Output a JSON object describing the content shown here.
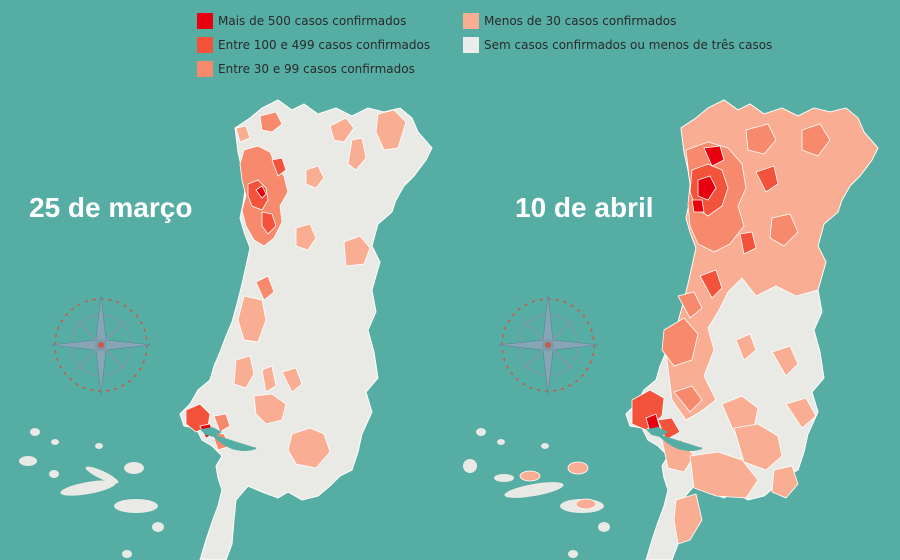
{
  "legend": {
    "items": [
      {
        "label": "Mais de 500 casos confirmados",
        "color": "#e8000e"
      },
      {
        "label": "Entre 100 e 499 casos confirmados",
        "color": "#f4533b"
      },
      {
        "label": "Entre 30 e 99 casos confirmados",
        "color": "#f78a6c"
      },
      {
        "label": "Menos de 30 casos confirmados",
        "color": "#f9ae94"
      },
      {
        "label": "Sem casos confirmados ou menos de três casos",
        "color": "#ececec"
      }
    ]
  },
  "maps": [
    {
      "date": "25 de março"
    },
    {
      "date": "10 de abril"
    }
  ],
  "colors": {
    "background": "#55ada4",
    "land": "#e9e9e6",
    "border": "#ffffff",
    "compass": "#7b9bab",
    "compass_ticks": "#c85a4a",
    "estuary": "#55ada4"
  },
  "icons": [
    "compass-rose-icon"
  ]
}
